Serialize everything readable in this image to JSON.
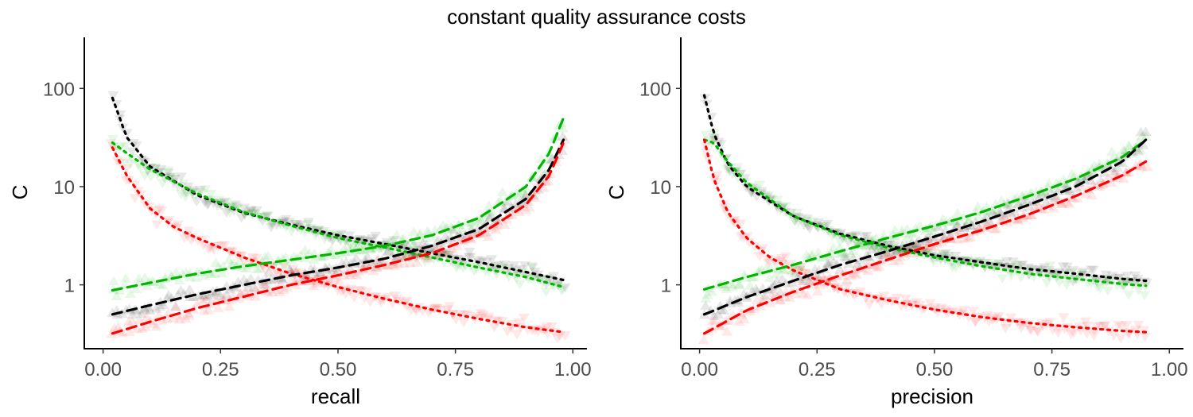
{
  "title": "constant quality assurance costs",
  "colors": {
    "green": "#00b400",
    "black": "#000000",
    "red": "#ff0000",
    "tick": "#4d4d4d"
  },
  "chart_data": [
    {
      "type": "scatter",
      "title": "constant quality assurance costs",
      "xlabel": "recall",
      "ylabel": "C",
      "xlim": [
        -0.04,
        1.03
      ],
      "ylim_log10": [
        -0.65,
        2.52
      ],
      "x_ticks": [
        0,
        0.25,
        0.5,
        0.75,
        1
      ],
      "x_tick_labels": [
        "0.00",
        "0.25",
        "0.50",
        "0.75",
        "1.00"
      ],
      "y_ticks": [
        1,
        10,
        100
      ],
      "y_tick_labels": [
        "1",
        "10",
        "100"
      ],
      "y_scale": "log",
      "series": [
        {
          "name": "black-down",
          "color": "#000000",
          "marker": "triangle-down",
          "linestyle": "dotted",
          "x": [
            0.02,
            0.05,
            0.1,
            0.2,
            0.3,
            0.4,
            0.5,
            0.6,
            0.7,
            0.8,
            0.9,
            0.98
          ],
          "y": [
            80,
            32,
            16,
            8.2,
            5.4,
            4.1,
            3.2,
            2.6,
            2.1,
            1.7,
            1.35,
            1.12
          ]
        },
        {
          "name": "green-down",
          "color": "#00b400",
          "marker": "triangle-down",
          "linestyle": "dotted",
          "x": [
            0.02,
            0.05,
            0.1,
            0.2,
            0.3,
            0.4,
            0.5,
            0.6,
            0.7,
            0.8,
            0.9,
            0.98
          ],
          "y": [
            28,
            22,
            15,
            8.5,
            5.5,
            4,
            3,
            2.4,
            1.9,
            1.5,
            1.2,
            0.95
          ]
        },
        {
          "name": "red-down",
          "color": "#ff0000",
          "marker": "triangle-down",
          "linestyle": "dotted",
          "x": [
            0.02,
            0.05,
            0.1,
            0.15,
            0.2,
            0.3,
            0.4,
            0.5,
            0.6,
            0.7,
            0.8,
            0.9,
            0.98
          ],
          "y": [
            25,
            13,
            6,
            3.9,
            3,
            1.9,
            1.3,
            0.95,
            0.72,
            0.56,
            0.45,
            0.37,
            0.33
          ]
        },
        {
          "name": "green-up",
          "color": "#00b400",
          "marker": "triangle-up",
          "linestyle": "dashed",
          "x": [
            0.02,
            0.1,
            0.2,
            0.3,
            0.4,
            0.5,
            0.6,
            0.7,
            0.8,
            0.9,
            0.95,
            0.98
          ],
          "y": [
            0.88,
            1.05,
            1.3,
            1.55,
            1.8,
            2.1,
            2.5,
            3.2,
            4.8,
            10,
            22,
            50
          ]
        },
        {
          "name": "black-up",
          "color": "#000000",
          "marker": "triangle-up",
          "linestyle": "dashed",
          "x": [
            0.02,
            0.1,
            0.2,
            0.3,
            0.4,
            0.5,
            0.6,
            0.7,
            0.8,
            0.9,
            0.95,
            0.98
          ],
          "y": [
            0.5,
            0.62,
            0.8,
            1.0,
            1.25,
            1.5,
            1.85,
            2.5,
            3.7,
            7.5,
            15,
            30
          ]
        },
        {
          "name": "red-up",
          "color": "#ff0000",
          "marker": "triangle-up",
          "linestyle": "dashed",
          "x": [
            0.02,
            0.1,
            0.2,
            0.3,
            0.4,
            0.5,
            0.6,
            0.7,
            0.8,
            0.9,
            0.95,
            0.98
          ],
          "y": [
            0.32,
            0.42,
            0.58,
            0.76,
            1.0,
            1.25,
            1.6,
            2.1,
            3.2,
            6.5,
            13,
            28
          ]
        }
      ]
    },
    {
      "type": "scatter",
      "xlabel": "precision",
      "ylabel": "C",
      "xlim": [
        -0.04,
        1.03
      ],
      "ylim_log10": [
        -0.65,
        2.52
      ],
      "x_ticks": [
        0,
        0.25,
        0.5,
        0.75,
        1
      ],
      "x_tick_labels": [
        "0.00",
        "0.25",
        "0.50",
        "0.75",
        "1.00"
      ],
      "y_ticks": [
        1,
        10,
        100
      ],
      "y_tick_labels": [
        "1",
        "10",
        "100"
      ],
      "y_scale": "log",
      "series": [
        {
          "name": "black-down",
          "color": "#000000",
          "marker": "triangle-down",
          "linestyle": "dotted",
          "x": [
            0.01,
            0.03,
            0.06,
            0.1,
            0.2,
            0.3,
            0.4,
            0.5,
            0.6,
            0.7,
            0.8,
            0.9,
            0.95
          ],
          "y": [
            85,
            35,
            17,
            10,
            5,
            3.3,
            2.5,
            2.0,
            1.7,
            1.45,
            1.3,
            1.15,
            1.1
          ]
        },
        {
          "name": "green-down",
          "color": "#00b400",
          "marker": "triangle-down",
          "linestyle": "dotted",
          "x": [
            0.01,
            0.03,
            0.06,
            0.1,
            0.2,
            0.3,
            0.4,
            0.5,
            0.6,
            0.7,
            0.8,
            0.9,
            0.95
          ],
          "y": [
            30,
            28,
            18,
            11,
            5,
            3.2,
            2.4,
            1.9,
            1.55,
            1.3,
            1.15,
            1.02,
            0.98
          ]
        },
        {
          "name": "red-down",
          "color": "#ff0000",
          "marker": "triangle-down",
          "linestyle": "dotted",
          "x": [
            0.01,
            0.03,
            0.06,
            0.1,
            0.15,
            0.2,
            0.3,
            0.4,
            0.5,
            0.6,
            0.7,
            0.8,
            0.9,
            0.95
          ],
          "y": [
            30,
            12,
            5.5,
            3.0,
            1.9,
            1.4,
            0.9,
            0.7,
            0.56,
            0.47,
            0.41,
            0.37,
            0.34,
            0.33
          ]
        },
        {
          "name": "green-up",
          "color": "#00b400",
          "marker": "triangle-up",
          "linestyle": "dashed",
          "x": [
            0.01,
            0.1,
            0.2,
            0.3,
            0.4,
            0.5,
            0.6,
            0.7,
            0.8,
            0.9,
            0.95
          ],
          "y": [
            0.9,
            1.2,
            1.6,
            2.2,
            3.0,
            4.0,
            5.5,
            8,
            12,
            20,
            30
          ]
        },
        {
          "name": "black-up",
          "color": "#000000",
          "marker": "triangle-up",
          "linestyle": "dashed",
          "x": [
            0.01,
            0.1,
            0.2,
            0.3,
            0.4,
            0.5,
            0.6,
            0.7,
            0.8,
            0.9,
            0.95
          ],
          "y": [
            0.5,
            0.75,
            1.1,
            1.6,
            2.2,
            3.1,
            4.4,
            6.5,
            10,
            18,
            30
          ]
        },
        {
          "name": "red-up",
          "color": "#ff0000",
          "marker": "triangle-up",
          "linestyle": "dashed",
          "x": [
            0.01,
            0.1,
            0.2,
            0.3,
            0.4,
            0.5,
            0.6,
            0.7,
            0.8,
            0.9,
            0.95
          ],
          "y": [
            0.32,
            0.55,
            0.85,
            1.25,
            1.8,
            2.6,
            3.6,
            5.2,
            8,
            13,
            18
          ]
        }
      ]
    }
  ]
}
